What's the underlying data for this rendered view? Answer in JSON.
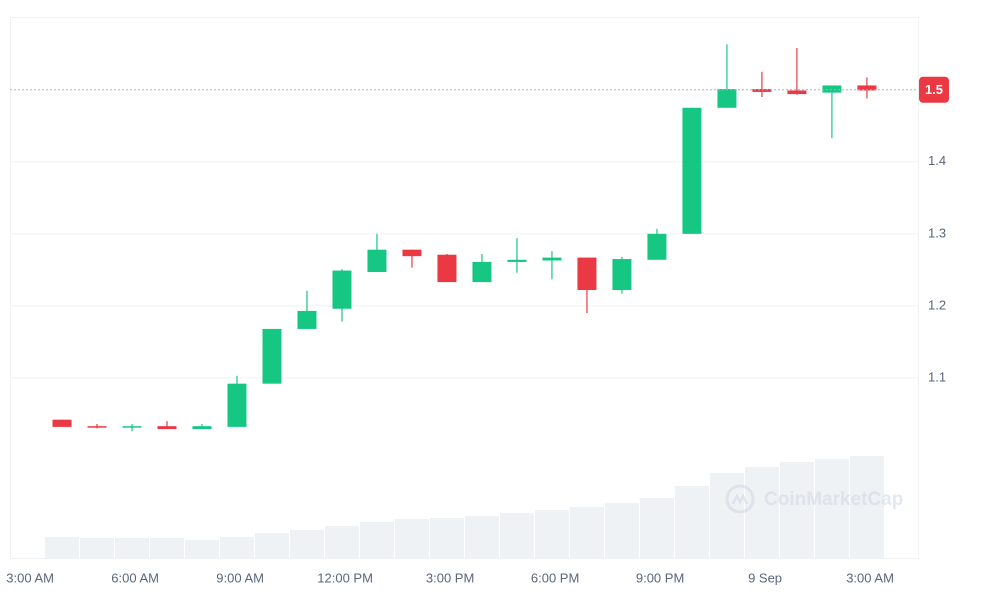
{
  "chart_data": {
    "type": "candlestick",
    "x": [
      0,
      1,
      2,
      3,
      4,
      5,
      6,
      7,
      8,
      9,
      10,
      11,
      12,
      13,
      14,
      15,
      16,
      17,
      18,
      19,
      20,
      21,
      22,
      23
    ],
    "open": [
      1.042,
      1.033,
      1.031,
      1.033,
      1.029,
      1.032,
      1.092,
      1.168,
      1.196,
      1.247,
      1.278,
      1.271,
      1.233,
      1.261,
      1.263,
      1.267,
      1.222,
      1.264,
      1.3,
      1.475,
      1.501,
      1.499,
      1.496,
      1.506
    ],
    "high": [
      1.042,
      1.036,
      1.036,
      1.04,
      1.036,
      1.103,
      1.168,
      1.221,
      1.251,
      1.3,
      1.278,
      1.272,
      1.272,
      1.294,
      1.276,
      1.267,
      1.268,
      1.307,
      1.475,
      1.563,
      1.525,
      1.558,
      1.506,
      1.517
    ],
    "low": [
      1.032,
      1.03,
      1.026,
      1.029,
      1.029,
      1.032,
      1.092,
      1.168,
      1.178,
      1.247,
      1.253,
      1.233,
      1.233,
      1.246,
      1.237,
      1.19,
      1.217,
      1.264,
      1.3,
      1.475,
      1.49,
      1.493,
      1.433,
      1.488
    ],
    "close": [
      1.032,
      1.031,
      1.033,
      1.029,
      1.033,
      1.092,
      1.168,
      1.193,
      1.249,
      1.278,
      1.269,
      1.233,
      1.261,
      1.264,
      1.267,
      1.222,
      1.265,
      1.3,
      1.475,
      1.501,
      1.497,
      1.494,
      1.506,
      1.499
    ],
    "volume": [
      21,
      20,
      20,
      20,
      18,
      21,
      25,
      28,
      32,
      36,
      39,
      40,
      42,
      45,
      48,
      51,
      55,
      60,
      72,
      85,
      91,
      96,
      99,
      102
    ],
    "up_color": "#16c784",
    "down_color": "#ea3943",
    "volume_color": "#eff2f5",
    "xlim": [
      -1.486,
      24.46
    ],
    "xticks": [
      {
        "value": -0.91,
        "label": "3:00 AM"
      },
      {
        "value": 2.09,
        "label": "6:00 AM"
      },
      {
        "value": 5.09,
        "label": "9:00 AM"
      },
      {
        "value": 8.09,
        "label": "12:00 PM"
      },
      {
        "value": 11.09,
        "label": "3:00 PM"
      },
      {
        "value": 14.09,
        "label": "6:00 PM"
      },
      {
        "value": 17.09,
        "label": "9:00 PM"
      },
      {
        "value": 20.09,
        "label": "9 Sep"
      },
      {
        "value": 23.09,
        "label": "3:00 AM"
      }
    ],
    "ylim": [
      0.85,
      1.601
    ],
    "yticks": [
      1.1,
      1.2,
      1.3,
      1.4
    ],
    "grid": true,
    "last_price": 1.5,
    "watermark": "CoinMarketCap"
  }
}
